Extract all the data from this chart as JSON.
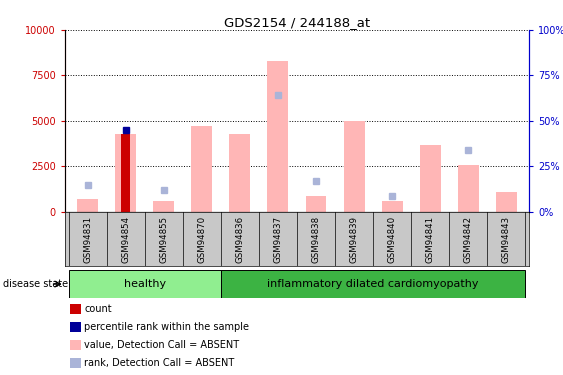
{
  "title": "GDS2154 / 244188_at",
  "samples": [
    "GSM94831",
    "GSM94854",
    "GSM94855",
    "GSM94870",
    "GSM94836",
    "GSM94837",
    "GSM94838",
    "GSM94839",
    "GSM94840",
    "GSM94841",
    "GSM94842",
    "GSM94843"
  ],
  "value_absent": [
    700,
    4300,
    600,
    4700,
    4300,
    8300,
    900,
    5000,
    600,
    3700,
    2600,
    1100
  ],
  "rank_absent_pct": [
    15,
    null,
    12,
    null,
    null,
    64,
    17,
    null,
    9,
    null,
    34,
    null
  ],
  "count_val": [
    null,
    4300,
    null,
    null,
    null,
    null,
    null,
    null,
    null,
    null,
    null,
    null
  ],
  "percentile_val": [
    null,
    45,
    null,
    null,
    null,
    null,
    null,
    null,
    null,
    null,
    null,
    null
  ],
  "ylim_left": [
    0,
    10000
  ],
  "ylim_right": [
    0,
    100
  ],
  "yticks_left": [
    0,
    2500,
    5000,
    7500,
    10000
  ],
  "ytick_labels_right": [
    "0%",
    "25%",
    "50%",
    "75%",
    "100%"
  ],
  "disease_groups": [
    {
      "label": "healthy",
      "indices": [
        0,
        1,
        2,
        3
      ],
      "color": "#90ee90"
    },
    {
      "label": "inflammatory dilated cardiomyopathy",
      "indices": [
        4,
        5,
        6,
        7,
        8,
        9,
        10,
        11
      ],
      "color": "#3cb343"
    }
  ],
  "bar_width": 0.55,
  "color_value_absent": "#ffb6b6",
  "color_rank_absent": "#aab4d8",
  "color_count": "#cc0000",
  "color_percentile": "#000099",
  "legend_items": [
    {
      "label": "count",
      "color": "#cc0000"
    },
    {
      "label": "percentile rank within the sample",
      "color": "#000099"
    },
    {
      "label": "value, Detection Call = ABSENT",
      "color": "#ffb6b6"
    },
    {
      "label": "rank, Detection Call = ABSENT",
      "color": "#aab4d8"
    }
  ],
  "grid_color": "black",
  "left_axis_color": "#cc0000",
  "right_axis_color": "#0000cc",
  "label_area_color": "#c8c8c8",
  "disease_state_text": "disease state"
}
